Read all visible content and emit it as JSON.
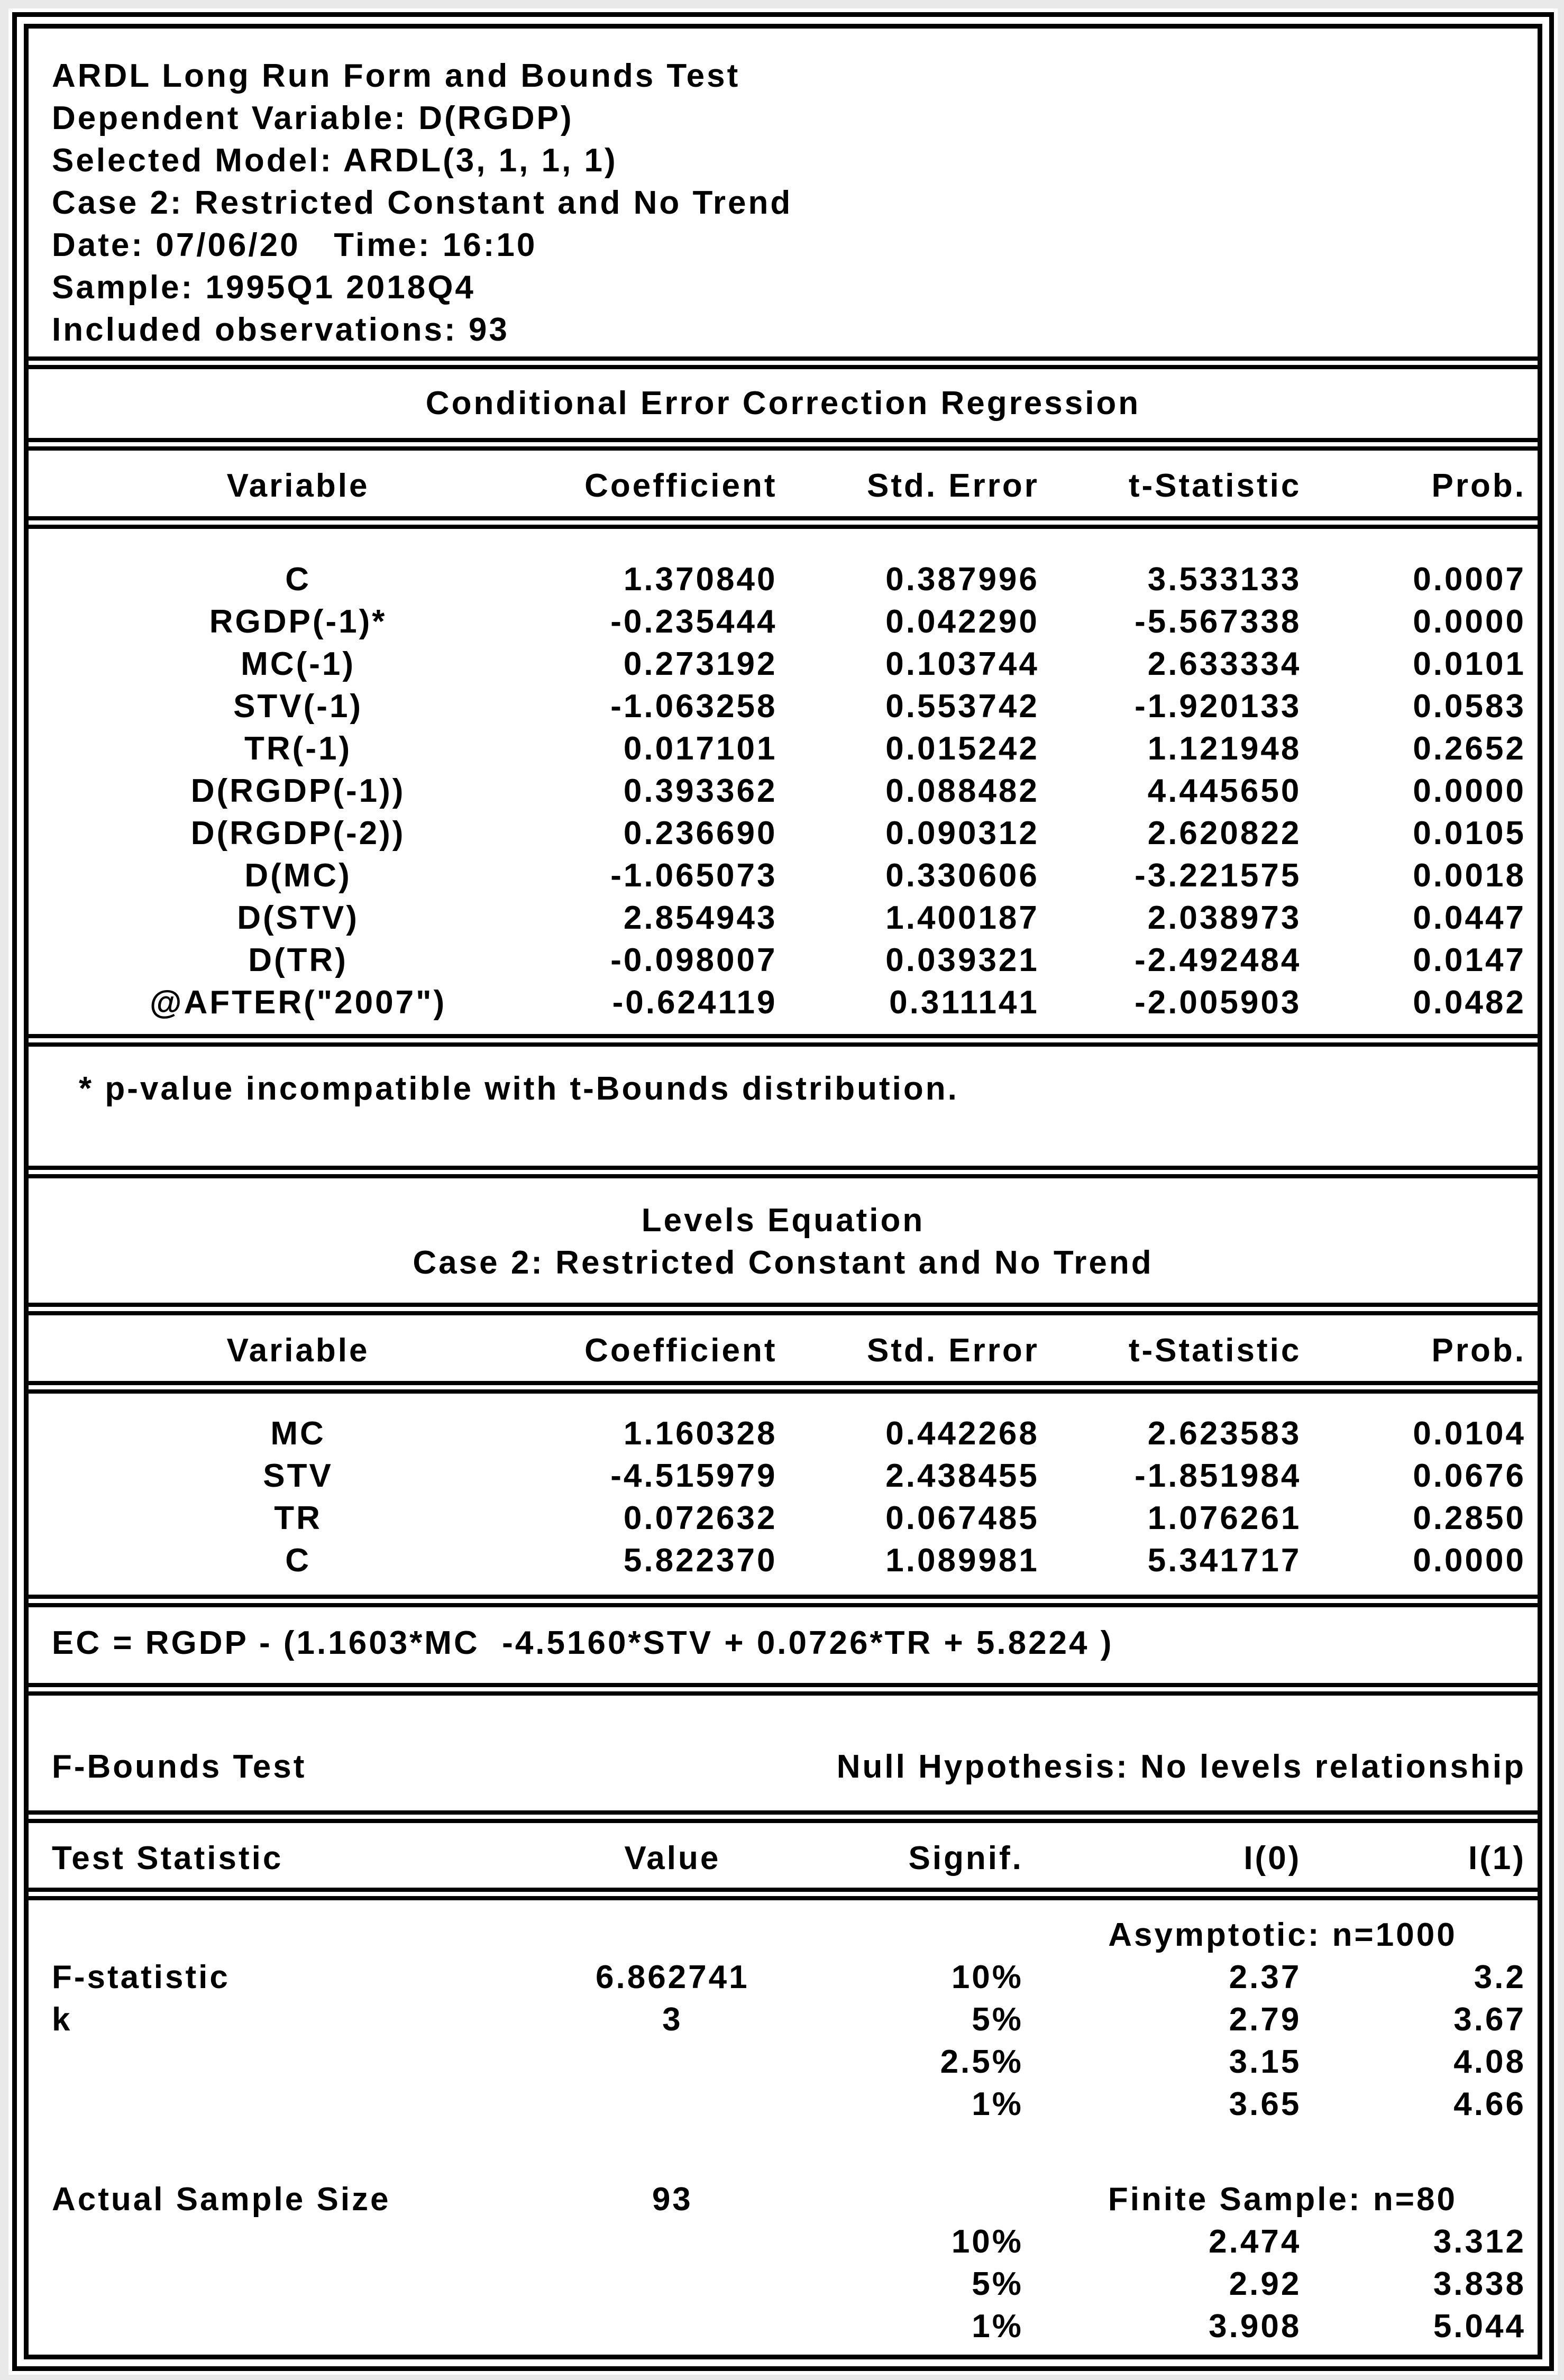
{
  "header": {
    "lines": [
      "ARDL Long Run Form and Bounds Test",
      "Dependent Variable: D(RGDP)",
      "Selected Model: ARDL(3, 1, 1, 1)",
      "Case 2: Restricted Constant and No Trend",
      "Date: 07/06/20   Time: 16:10",
      "Sample: 1995Q1 2018Q4",
      "Included observations: 93"
    ]
  },
  "cec_regression": {
    "title": "Conditional Error Correction Regression",
    "columns": [
      "Variable",
      "Coefficient",
      "Std. Error",
      "t-Statistic",
      "Prob."
    ],
    "rows": [
      [
        "C",
        "1.370840",
        "0.387996",
        "3.533133",
        "0.0007"
      ],
      [
        "RGDP(-1)*",
        "-0.235444",
        "0.042290",
        "-5.567338",
        "0.0000"
      ],
      [
        "MC(-1)",
        "0.273192",
        "0.103744",
        "2.633334",
        "0.0101"
      ],
      [
        "STV(-1)",
        "-1.063258",
        "0.553742",
        "-1.920133",
        "0.0583"
      ],
      [
        "TR(-1)",
        "0.017101",
        "0.015242",
        "1.121948",
        "0.2652"
      ],
      [
        "D(RGDP(-1))",
        "0.393362",
        "0.088482",
        "4.445650",
        "0.0000"
      ],
      [
        "D(RGDP(-2))",
        "0.236690",
        "0.090312",
        "2.620822",
        "0.0105"
      ],
      [
        "D(MC)",
        "-1.065073",
        "0.330606",
        "-3.221575",
        "0.0018"
      ],
      [
        "D(STV)",
        "2.854943",
        "1.400187",
        "2.038973",
        "0.0447"
      ],
      [
        "D(TR)",
        "-0.098007",
        "0.039321",
        "-2.492484",
        "0.0147"
      ],
      [
        "@AFTER(\"2007\")",
        "-0.624119",
        "0.311141",
        "-2.005903",
        "0.0482"
      ]
    ],
    "footnote": "* p-value incompatible with t-Bounds distribution."
  },
  "levels_equation": {
    "title": "Levels Equation",
    "subtitle": "Case 2: Restricted Constant and No Trend",
    "columns": [
      "Variable",
      "Coefficient",
      "Std. Error",
      "t-Statistic",
      "Prob."
    ],
    "rows": [
      [
        "MC",
        "1.160328",
        "0.442268",
        "2.623583",
        "0.0104"
      ],
      [
        "STV",
        "-4.515979",
        "2.438455",
        "-1.851984",
        "0.0676"
      ],
      [
        "TR",
        "0.072632",
        "0.067485",
        "1.076261",
        "0.2850"
      ],
      [
        "C",
        "5.822370",
        "1.089981",
        "5.341717",
        "0.0000"
      ]
    ],
    "ec_equation": "EC = RGDP - (1.1603*MC  -4.5160*STV + 0.0726*TR + 5.8224 )"
  },
  "f_bounds_test": {
    "title": "F-Bounds Test",
    "null_hypothesis": "Null Hypothesis: No levels relationship",
    "columns": [
      "Test Statistic",
      "Value",
      "Signif.",
      "I(0)",
      "I(1)"
    ],
    "asymptotic_label": "Asymptotic: n=1000",
    "asymptotic_rows": [
      [
        "F-statistic",
        "6.862741",
        "10%",
        "2.37",
        "3.2"
      ],
      [
        "k",
        "3",
        "5%",
        "2.79",
        "3.67"
      ],
      [
        "",
        "",
        "2.5%",
        "3.15",
        "4.08"
      ],
      [
        "",
        "",
        "1%",
        "3.65",
        "4.66"
      ]
    ],
    "actual_sample_size_label": "Actual Sample Size",
    "actual_sample_size_value": "93",
    "finite_sample_label": "Finite Sample: n=80",
    "finite_rows": [
      [
        "",
        "",
        "10%",
        "2.474",
        "3.312"
      ],
      [
        "",
        "",
        "5%",
        "2.92",
        "3.838"
      ],
      [
        "",
        "",
        "1%",
        "3.908",
        "5.044"
      ]
    ]
  }
}
